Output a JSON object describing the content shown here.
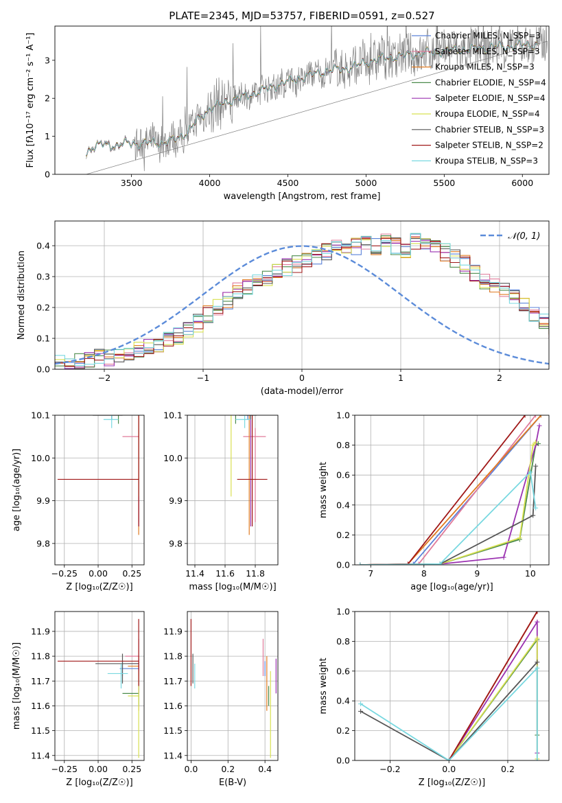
{
  "colors": {
    "chabrier_miles": "#5a82d8",
    "salpeter_miles": "#e07a9a",
    "kroupa_miles": "#e07a20",
    "chabrier_elodie": "#4a8a4a",
    "salpeter_elodie": "#9a30b0",
    "kroupa_elodie": "#d8e050",
    "chabrier_stelib": "#555555",
    "salpeter_stelib": "#a01818",
    "kroupa_stelib": "#78d8e0",
    "noisy_data": "#808080",
    "normal_curve": "#5b8bd9"
  },
  "chart_data": [
    {
      "id": "spectrum",
      "type": "line",
      "title": "PLATE=2345, MJD=53757, FIBERID=0591, z=0.527",
      "xlabel": "wavelength [Angstrom, rest frame]",
      "ylabel": "Flux [fλ10⁻¹⁷ erg cm⁻² s⁻¹ A⁻¹]",
      "xlim": [
        3010,
        6170
      ],
      "ylim": [
        0,
        3.9
      ],
      "xticks": [
        "3500",
        "4000",
        "4500",
        "5000",
        "5500",
        "6000"
      ],
      "yticks": [
        "0",
        "1",
        "2",
        "3"
      ],
      "legend_position": "right",
      "series": [
        {
          "name": "Chabrier MILES, N_SSP=3"
        },
        {
          "name": "Salpeter MILES, N_SSP=3"
        },
        {
          "name": "Kroupa MILES, N_SSP=3"
        },
        {
          "name": "Chabrier ELODIE, N_SSP=4"
        },
        {
          "name": "Salpeter ELODIE, N_SSP=4"
        },
        {
          "name": "Kroupa ELODIE, N_SSP=4"
        },
        {
          "name": "Chabrier STELIB, N_SSP=3"
        },
        {
          "name": "Salpeter STELIB, N_SSP=2"
        },
        {
          "name": "Kroupa STELIB, N_SSP=3"
        }
      ],
      "model_shape": {
        "x": [
          3210,
          3250,
          3300,
          3400,
          3480,
          3560,
          3640,
          3700,
          3780,
          3860,
          3940,
          4000,
          4100,
          4200,
          4300,
          4400,
          4500,
          4600,
          4700,
          4800,
          4900,
          5000,
          5100,
          5200,
          5300,
          5400,
          5500,
          5600,
          5700,
          5800,
          5900,
          6000,
          6100
        ],
        "y": [
          0.55,
          0.72,
          0.78,
          0.76,
          0.82,
          0.8,
          0.85,
          0.82,
          0.92,
          1.12,
          1.5,
          1.72,
          1.9,
          2.02,
          2.15,
          2.3,
          2.45,
          2.55,
          2.68,
          2.75,
          2.8,
          2.95,
          3.05,
          3.1,
          3.15,
          3.2,
          3.25,
          3.28,
          3.3,
          3.35,
          3.35,
          3.4,
          3.42
        ]
      }
    },
    {
      "id": "residuals",
      "type": "area",
      "xlabel": "(data-model)/error",
      "ylabel": "Normed distribution",
      "xlim": [
        -2.5,
        2.5
      ],
      "ylim": [
        0,
        0.48
      ],
      "xticks": [
        "−2",
        "−1",
        "0",
        "1",
        "2"
      ],
      "yticks": [
        "0.0",
        "0.1",
        "0.2",
        "0.3",
        "0.4"
      ],
      "legend": "𝒩(0, 1)",
      "legend_position": "top-right",
      "grid": true,
      "base_hist": {
        "x_start": -2.5,
        "bin_width": 0.1,
        "values": [
          0.02,
          0.025,
          0.03,
          0.035,
          0.04,
          0.04,
          0.045,
          0.05,
          0.06,
          0.07,
          0.08,
          0.1,
          0.11,
          0.13,
          0.15,
          0.18,
          0.2,
          0.22,
          0.25,
          0.27,
          0.28,
          0.3,
          0.31,
          0.33,
          0.34,
          0.35,
          0.37,
          0.38,
          0.39,
          0.39,
          0.4,
          0.41,
          0.4,
          0.41,
          0.4,
          0.39,
          0.41,
          0.4,
          0.39,
          0.38,
          0.36,
          0.34,
          0.31,
          0.29,
          0.27,
          0.25,
          0.23,
          0.2,
          0.17,
          0.15,
          0.13,
          0.11,
          0.1,
          0.09,
          0.08,
          0.07,
          0.06,
          0.05,
          0.04,
          0.035,
          0.03,
          0.025,
          0.025,
          0.02,
          0.02,
          0.02,
          0.02,
          0.02,
          0.02,
          0.02
        ]
      }
    },
    {
      "id": "age_vs_z",
      "type": "scatter",
      "xlabel": "Z [log₁₀(Z/Z☉)]",
      "ylabel": "age  [log₁₀(age/yr)]",
      "xlim": [
        -0.32,
        0.34
      ],
      "ylim": [
        9.75,
        10.1
      ],
      "xticks": [
        "−0.25",
        "0.00",
        "0.25"
      ],
      "yticks": [
        "9.8",
        "9.9",
        "10.0",
        "10.1"
      ],
      "points": [
        {
          "series": "Chabrier MILES",
          "x": 0.1,
          "y": 10.11,
          "xerr": [
            0.06,
            0.03
          ],
          "yerr": [
            0.02,
            0.01
          ]
        },
        {
          "series": "Salpeter MILES",
          "x": 0.3,
          "y": 10.05,
          "xerr": [
            0.12,
            0.0
          ],
          "yerr": [
            0.2,
            0.02
          ]
        },
        {
          "series": "Kroupa MILES",
          "x": 0.3,
          "y": 10.14,
          "xerr": [
            0.08,
            0.0
          ],
          "yerr": [
            0.32,
            0.01
          ]
        },
        {
          "series": "Chabrier ELODIE",
          "x": 0.15,
          "y": 10.11,
          "xerr": [
            0.05,
            0.02
          ],
          "yerr": [
            0.03,
            0.02
          ]
        },
        {
          "series": "Salpeter ELODIE",
          "x": 0.3,
          "y": 10.12,
          "xerr": [
            0.08,
            0.0
          ],
          "yerr": [
            0.28,
            0.01
          ]
        },
        {
          "series": "Kroupa ELODIE",
          "x": 0.3,
          "y": 10.11,
          "xerr": [
            0.1,
            0.0
          ],
          "yerr": [
            0.2,
            0.02
          ]
        },
        {
          "series": "Chabrier STELIB",
          "x": 0.1,
          "y": 10.1,
          "xerr": [
            0.14,
            0.08
          ],
          "yerr": [
            0.01,
            0.01
          ]
        },
        {
          "series": "Salpeter STELIB",
          "x": 0.3,
          "y": 9.95,
          "xerr": [
            0.6,
            0.0
          ],
          "yerr": [
            0.11,
            0.17
          ]
        },
        {
          "series": "Kroupa STELIB",
          "x": 0.1,
          "y": 10.09,
          "xerr": [
            0.06,
            0.05
          ],
          "yerr": [
            0.02,
            0.01
          ]
        }
      ]
    },
    {
      "id": "age_vs_mass",
      "type": "scatter",
      "xlabel": "mass [log₁₀(M/M☉)]",
      "ylabel": "",
      "xlim": [
        11.35,
        11.95
      ],
      "ylim": [
        9.75,
        10.1
      ],
      "xticks": [
        "11.4",
        "11.6",
        "11.8"
      ],
      "yticks": [
        "9.8",
        "9.9",
        "10.0",
        "10.1"
      ],
      "points": [
        {
          "series": "Chabrier MILES",
          "x": 11.75,
          "y": 10.11,
          "xerr": [
            0.03,
            0.03
          ],
          "yerr": [
            0.02,
            0.01
          ]
        },
        {
          "series": "Salpeter MILES",
          "x": 11.8,
          "y": 10.05,
          "xerr": [
            0.08,
            0.07
          ],
          "yerr": [
            0.2,
            0.02
          ]
        },
        {
          "series": "Kroupa MILES",
          "x": 11.76,
          "y": 10.14,
          "xerr": [
            0.18,
            0.04
          ],
          "yerr": [
            0.32,
            0.01
          ]
        },
        {
          "series": "Chabrier ELODIE",
          "x": 11.67,
          "y": 10.11,
          "xerr": [
            0.05,
            0.03
          ],
          "yerr": [
            0.03,
            0.02
          ]
        },
        {
          "series": "Salpeter ELODIE",
          "x": 11.77,
          "y": 10.12,
          "xerr": [
            0.12,
            0.02
          ],
          "yerr": [
            0.28,
            0.01
          ]
        },
        {
          "series": "Kroupa ELODIE",
          "x": 11.64,
          "y": 10.11,
          "xerr": [
            0.25,
            0.1
          ],
          "yerr": [
            0.2,
            0.02
          ]
        },
        {
          "series": "Chabrier STELIB",
          "x": 11.77,
          "y": 10.1,
          "xerr": [
            0.08,
            0.04
          ],
          "yerr": [
            0.01,
            0.01
          ]
        },
        {
          "series": "Salpeter STELIB",
          "x": 11.78,
          "y": 9.95,
          "xerr": [
            0.1,
            0.1
          ],
          "yerr": [
            0.11,
            0.17
          ]
        },
        {
          "series": "Kroupa STELIB",
          "x": 11.73,
          "y": 10.09,
          "xerr": [
            0.06,
            0.04
          ],
          "yerr": [
            0.02,
            0.01
          ]
        }
      ]
    },
    {
      "id": "cum_age",
      "type": "line",
      "xlabel": "age  [log₁₀(age/yr)]",
      "ylabel": "mass weight",
      "xlim": [
        6.7,
        10.35
      ],
      "ylim": [
        0,
        1
      ],
      "xticks": [
        "7",
        "8",
        "9",
        "10"
      ],
      "yticks": [
        "0.0",
        "0.2",
        "0.4",
        "0.6",
        "0.8",
        "1.0"
      ],
      "grid": true,
      "series": [
        {
          "series": "Chabrier MILES",
          "x": [
            6.8,
            7.8,
            10.2
          ],
          "y": [
            0.0,
            0.005,
            1.0
          ]
        },
        {
          "series": "Salpeter MILES",
          "x": [
            6.8,
            7.9,
            10.1
          ],
          "y": [
            0.0,
            0.005,
            1.0
          ]
        },
        {
          "series": "Kroupa MILES",
          "x": [
            6.8,
            7.7,
            10.2
          ],
          "y": [
            0.0,
            0.005,
            1.0
          ]
        },
        {
          "series": "Chabrier ELODIE",
          "x": [
            6.8,
            8.3,
            9.8,
            10.1,
            10.15
          ],
          "y": [
            0.0,
            0.005,
            0.17,
            0.8,
            0.81
          ]
        },
        {
          "series": "Salpeter ELODIE",
          "x": [
            6.8,
            8.3,
            9.5,
            10.1,
            10.17
          ],
          "y": [
            0.0,
            0.005,
            0.05,
            0.8,
            0.93
          ]
        },
        {
          "series": "Kroupa ELODIE",
          "x": [
            6.8,
            8.3,
            9.8,
            10.05,
            10.1
          ],
          "y": [
            0.0,
            0.005,
            0.18,
            0.8,
            0.82
          ]
        },
        {
          "series": "Chabrier STELIB",
          "x": [
            6.8,
            8.3,
            10.05,
            10.1
          ],
          "y": [
            0.0,
            0.005,
            0.33,
            0.66
          ]
        },
        {
          "series": "Salpeter STELIB",
          "x": [
            6.8,
            7.7,
            9.9
          ],
          "y": [
            0.0,
            0.005,
            1.0
          ]
        },
        {
          "series": "Kroupa STELIB",
          "x": [
            6.8,
            8.3,
            10.0,
            10.1
          ],
          "y": [
            0.0,
            0.005,
            0.62,
            0.38
          ]
        }
      ]
    },
    {
      "id": "mass_vs_z",
      "type": "scatter",
      "xlabel": "Z [log₁₀(Z/Z☉)]",
      "ylabel": "mass [log₁₀(M/M☉)]",
      "xlim": [
        -0.32,
        0.34
      ],
      "ylim": [
        11.38,
        11.98
      ],
      "xticks": [
        "−0.25",
        "0.00",
        "0.25"
      ],
      "yticks": [
        "11.4",
        "11.5",
        "11.6",
        "11.7",
        "11.8",
        "11.9"
      ],
      "points": [
        {
          "series": "Chabrier MILES",
          "x": 0.18,
          "y": 11.75,
          "xerr": [
            0.02,
            0.12
          ],
          "yerr": [
            0.03,
            0.03
          ]
        },
        {
          "series": "Salpeter MILES",
          "x": 0.3,
          "y": 11.8,
          "xerr": [
            0.1,
            0.0
          ],
          "yerr": [
            0.08,
            0.07
          ]
        },
        {
          "series": "Kroupa MILES",
          "x": 0.3,
          "y": 11.76,
          "xerr": [
            0.08,
            0.0
          ],
          "yerr": [
            0.18,
            0.04
          ]
        },
        {
          "series": "Chabrier ELODIE",
          "x": 0.3,
          "y": 11.65,
          "xerr": [
            0.12,
            0.0
          ],
          "yerr": [
            0.05,
            0.03
          ]
        },
        {
          "series": "Salpeter ELODIE",
          "x": 0.3,
          "y": 11.77,
          "xerr": [
            0.08,
            0.0
          ],
          "yerr": [
            0.12,
            0.02
          ]
        },
        {
          "series": "Kroupa ELODIE",
          "x": 0.3,
          "y": 11.64,
          "xerr": [
            0.08,
            0.0
          ],
          "yerr": [
            0.25,
            0.1
          ]
        },
        {
          "series": "Chabrier STELIB",
          "x": 0.18,
          "y": 11.77,
          "xerr": [
            0.2,
            0.12
          ],
          "yerr": [
            0.08,
            0.04
          ]
        },
        {
          "series": "Salpeter STELIB",
          "x": 0.3,
          "y": 11.78,
          "xerr": [
            0.6,
            0.0
          ],
          "yerr": [
            0.1,
            0.17
          ]
        },
        {
          "series": "Kroupa STELIB",
          "x": 0.17,
          "y": 11.73,
          "xerr": [
            0.1,
            0.05
          ],
          "yerr": [
            0.06,
            0.04
          ]
        }
      ]
    },
    {
      "id": "mass_vs_ebv",
      "type": "scatter",
      "xlabel": "E(B-V)",
      "ylabel": "",
      "xlim": [
        -0.02,
        0.47
      ],
      "ylim": [
        11.38,
        11.98
      ],
      "xticks": [
        "0.0",
        "0.2",
        "0.4"
      ],
      "yticks": [
        "11.4",
        "11.5",
        "11.6",
        "11.7",
        "11.8",
        "11.9"
      ],
      "points": [
        {
          "series": "Chabrier MILES",
          "x": 0.4,
          "y": 11.75,
          "xerr": [
            0.0,
            0.0
          ],
          "yerr": [
            0.03,
            0.03
          ]
        },
        {
          "series": "Salpeter MILES",
          "x": 0.39,
          "y": 11.8,
          "xerr": [
            0.0,
            0.0
          ],
          "yerr": [
            0.08,
            0.07
          ]
        },
        {
          "series": "Kroupa MILES",
          "x": 0.41,
          "y": 11.76,
          "xerr": [
            0.0,
            0.0
          ],
          "yerr": [
            0.18,
            0.04
          ]
        },
        {
          "series": "Chabrier ELODIE",
          "x": 0.42,
          "y": 11.65,
          "xerr": [
            0.0,
            0.0
          ],
          "yerr": [
            0.05,
            0.03
          ]
        },
        {
          "series": "Salpeter ELODIE",
          "x": 0.46,
          "y": 11.77,
          "xerr": [
            0.0,
            0.0
          ],
          "yerr": [
            0.12,
            0.02
          ]
        },
        {
          "series": "Kroupa ELODIE",
          "x": 0.43,
          "y": 11.64,
          "xerr": [
            0.0,
            0.0
          ],
          "yerr": [
            0.25,
            0.1
          ]
        },
        {
          "series": "Chabrier STELIB",
          "x": 0.01,
          "y": 11.77,
          "xerr": [
            0.0,
            0.0
          ],
          "yerr": [
            0.08,
            0.04
          ]
        },
        {
          "series": "Salpeter STELIB",
          "x": 0.0,
          "y": 11.78,
          "xerr": [
            0.0,
            0.0
          ],
          "yerr": [
            0.1,
            0.17
          ]
        },
        {
          "series": "Kroupa STELIB",
          "x": 0.02,
          "y": 11.73,
          "xerr": [
            0.0,
            0.0
          ],
          "yerr": [
            0.06,
            0.04
          ]
        }
      ]
    },
    {
      "id": "cum_z",
      "type": "line",
      "xlabel": "Z [log₁₀(Z/Z☉)]",
      "ylabel": "mass weight",
      "xlim": [
        -0.32,
        0.34
      ],
      "ylim": [
        0,
        1
      ],
      "xticks": [
        "−0.2",
        "0.0",
        "0.2"
      ],
      "yticks": [
        "0.0",
        "0.2",
        "0.4",
        "0.6",
        "0.8",
        "1.0"
      ],
      "grid": true,
      "series": [
        {
          "series": "Chabrier MILES",
          "x": [
            0.0,
            0.3
          ],
          "y": [
            0.0,
            1.0
          ]
        },
        {
          "series": "Salpeter MILES",
          "x": [
            0.0,
            0.3
          ],
          "y": [
            0.0,
            1.0
          ]
        },
        {
          "series": "Kroupa MILES",
          "x": [
            0.0,
            0.3
          ],
          "y": [
            0.0,
            1.0
          ]
        },
        {
          "series": "Chabrier ELODIE",
          "x": [
            0.0,
            0.3,
            0.3
          ],
          "y": [
            0.0,
            0.81,
            0.17
          ]
        },
        {
          "series": "Salpeter ELODIE",
          "x": [
            0.0,
            0.3,
            0.3
          ],
          "y": [
            0.0,
            0.93,
            0.05
          ]
        },
        {
          "series": "Kroupa ELODIE",
          "x": [
            0.0,
            0.3,
            0.3
          ],
          "y": [
            0.0,
            0.82,
            0.01
          ]
        },
        {
          "series": "Chabrier STELIB",
          "x": [
            -0.3,
            0.0,
            0.3
          ],
          "y": [
            0.33,
            0.0,
            0.66
          ]
        },
        {
          "series": "Salpeter STELIB",
          "x": [
            0.0,
            0.3
          ],
          "y": [
            0.0,
            1.0
          ]
        },
        {
          "series": "Kroupa STELIB",
          "x": [
            -0.3,
            0.0,
            0.3,
            0.3
          ],
          "y": [
            0.38,
            0.0,
            0.62,
            0.0
          ]
        }
      ]
    }
  ]
}
